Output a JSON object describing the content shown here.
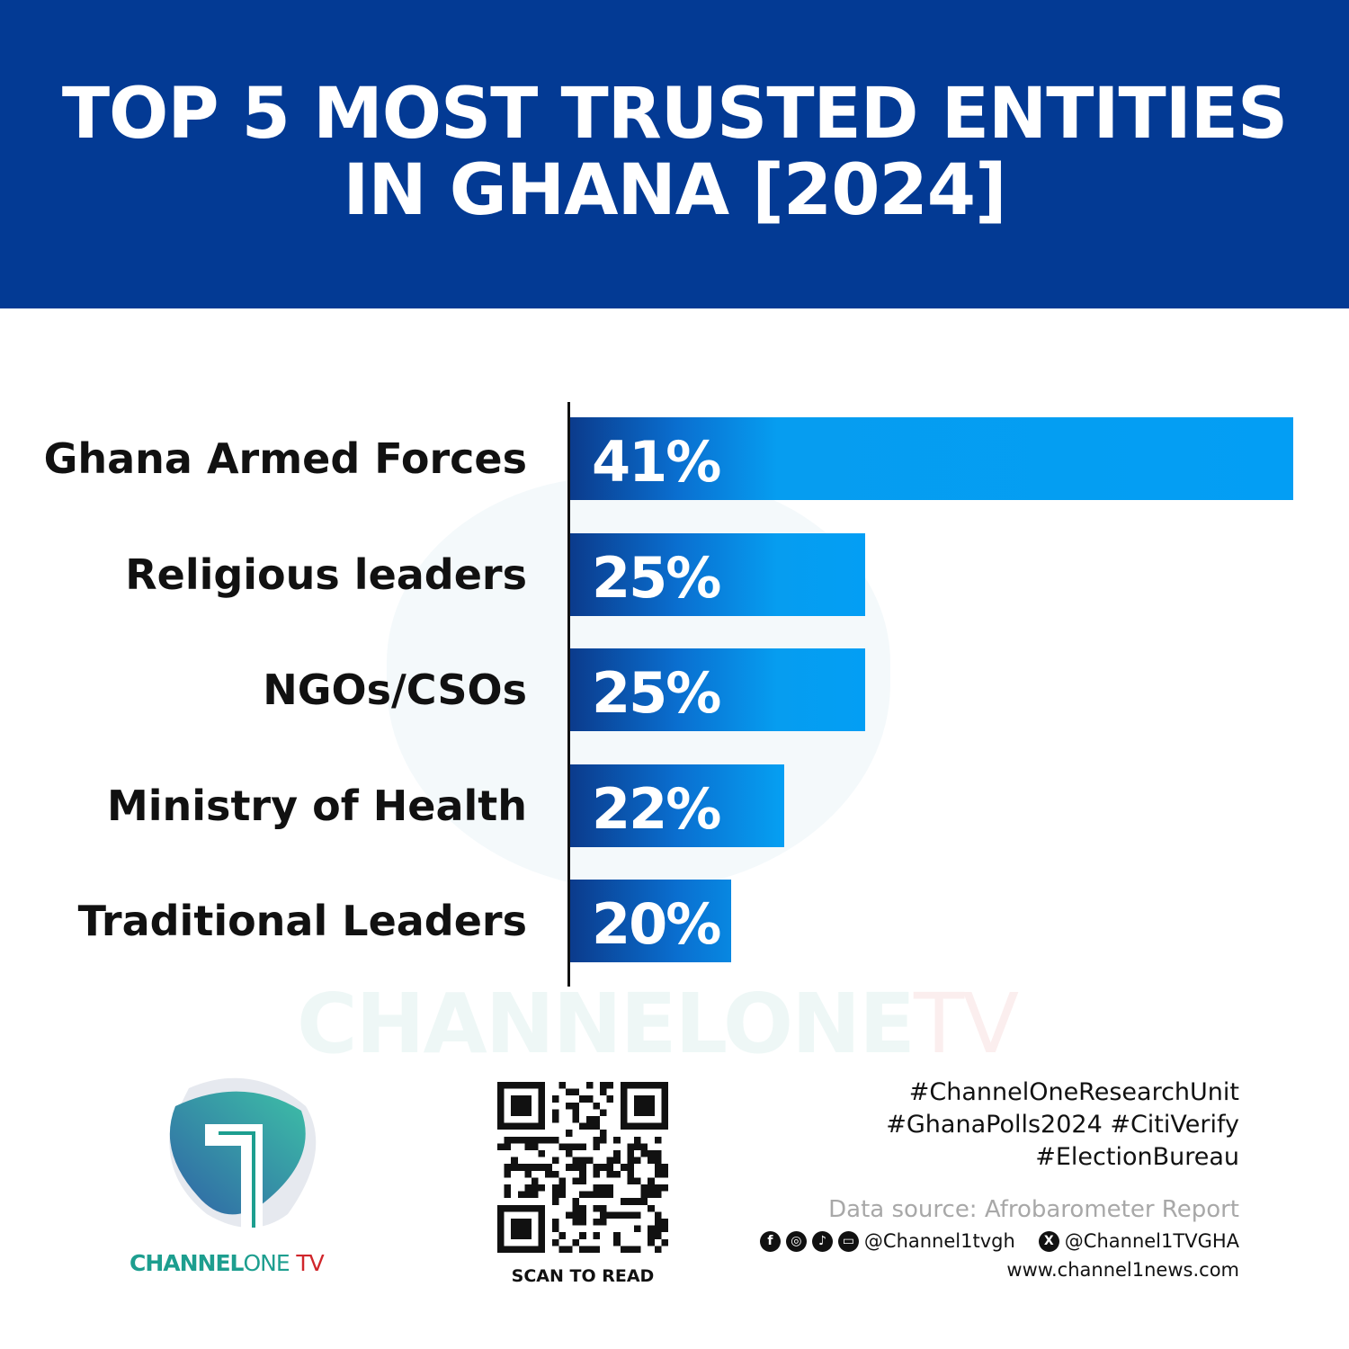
{
  "header": {
    "title_line1": "TOP 5 MOST TRUSTED ENTITIES",
    "title_line2": "IN GHANA [2024]",
    "color": "#033a94"
  },
  "chart_data": {
    "type": "bar",
    "orientation": "horizontal",
    "categories": [
      "Ghana Armed Forces",
      "Religious leaders",
      "NGOs/CSOs",
      "Ministry of Health",
      "Traditional Leaders"
    ],
    "values": [
      41,
      25,
      25,
      22,
      20
    ],
    "value_labels": [
      "41%",
      "25%",
      "25%",
      "22%",
      "20%"
    ],
    "unit": "%",
    "bar_color": "#039ef4",
    "grid": false
  },
  "watermark": {
    "main": "CHANNELONE",
    "tv": "TV"
  },
  "logo": {
    "channel": "CHANNEL",
    "one": "ONE",
    "tv": "TV"
  },
  "qr": {
    "label": "SCAN TO READ"
  },
  "footer": {
    "hashtags": [
      "#ChannelOneResearchUnit",
      "#GhanaPolls2024 #CitiVerify",
      "#ElectionBureau"
    ],
    "source": "Data source: Afrobarometer Report",
    "social_icons": [
      "facebook-icon",
      "instagram-icon",
      "tiktok-icon",
      "youtube-icon"
    ],
    "handle_main": "@Channel1tvgh",
    "handle_x": "@Channel1TVGHA",
    "website": "www.channel1news.com"
  }
}
